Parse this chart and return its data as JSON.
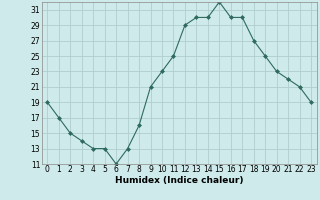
{
  "x": [
    0,
    1,
    2,
    3,
    4,
    5,
    6,
    7,
    8,
    9,
    10,
    11,
    12,
    13,
    14,
    15,
    16,
    17,
    18,
    19,
    20,
    21,
    22,
    23
  ],
  "y": [
    19,
    17,
    15,
    14,
    13,
    13,
    11,
    13,
    16,
    21,
    23,
    25,
    29,
    30,
    30,
    32,
    30,
    30,
    27,
    25,
    23,
    22,
    21,
    19
  ],
  "line_color": "#2e6b5e",
  "marker": "D",
  "marker_size": 2.0,
  "bg_color": "#ceeaea",
  "grid_color": "#b0cece",
  "xlabel": "Humidex (Indice chaleur)",
  "ylim": [
    11,
    32
  ],
  "yticks": [
    11,
    13,
    15,
    17,
    19,
    21,
    23,
    25,
    27,
    29,
    31
  ],
  "xlim": [
    -0.5,
    23.5
  ],
  "xticks": [
    0,
    1,
    2,
    3,
    4,
    5,
    6,
    7,
    8,
    9,
    10,
    11,
    12,
    13,
    14,
    15,
    16,
    17,
    18,
    19,
    20,
    21,
    22,
    23
  ],
  "tick_fontsize": 5.5,
  "xlabel_fontsize": 6.5
}
